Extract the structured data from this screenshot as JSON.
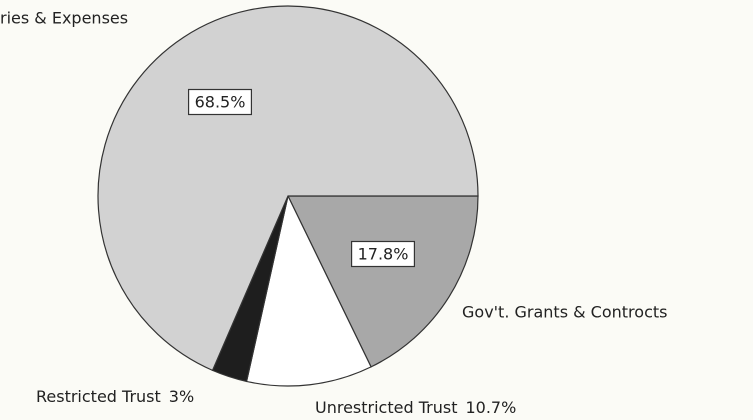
{
  "chart_data": {
    "type": "pie",
    "categories": [
      "Gov't. Grants & Controcts",
      "Unrestricted Trust",
      "Restricted Trust",
      "ries & Expenses"
    ],
    "values": [
      17.8,
      10.7,
      3,
      68.5
    ],
    "value_labels": [
      "17.8%",
      "10.7%",
      "3%",
      "68.5%"
    ],
    "colors": [
      "#a8a8a8",
      "#ffffff",
      "#1e1e1e",
      "#d2d2d2"
    ]
  }
}
